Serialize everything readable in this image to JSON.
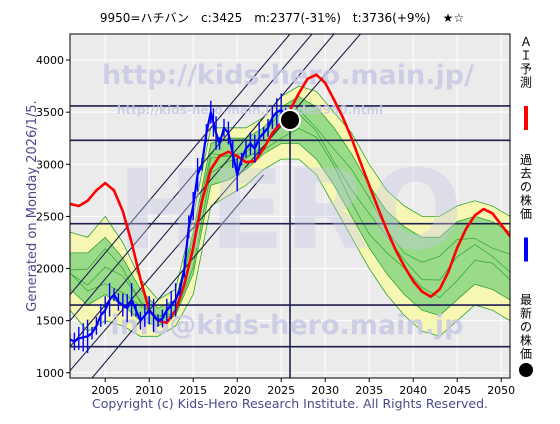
{
  "header": {
    "title": "9950=ハチバン　c:3425　m:2377(-31%)　t:3736(+9%)　★☆"
  },
  "side_label": "Generated on Monday 2026/1/5.",
  "legend": {
    "items": [
      {
        "label": "ＡＩ予測",
        "color": "#ff0000",
        "kind": "line"
      },
      {
        "label": "過去の株価",
        "color": "#0000ff",
        "kind": "line"
      },
      {
        "label": "最新の株価",
        "color": "#000000",
        "kind": "dot"
      }
    ]
  },
  "watermarks": {
    "url_main": "http://kids-hero.main.jp/",
    "url_sub": "http://kids-hero.main.jp/code9950.html",
    "email": "info@kids-hero.main.jp",
    "brand": "HERO"
  },
  "footer": {
    "copyright": "Copyright (c) Kids-Hero Research Institute. All Rights Reserved."
  },
  "colors": {
    "plot_bg": "#ebebeb",
    "grid": "#ffffff",
    "price": "#0000ff",
    "forecast": "#ff0000",
    "trend": "#1f1f50",
    "band_yellow": "#f7f7b4",
    "band_green": "#7ad27a",
    "band_line": "#2fa52f",
    "watermark": "#c8c8e6"
  },
  "chart_data": {
    "type": "line",
    "title": "9950=ハチバン　c:3425　m:2377(-31%)　t:3736(+9%)　★☆",
    "xlim": [
      2001,
      2051
    ],
    "ylim": [
      950,
      4250
    ],
    "x_ticks": [
      2005,
      2010,
      2015,
      2020,
      2025,
      2030,
      2035,
      2040,
      2045,
      2050
    ],
    "y_ticks": [
      1000,
      1500,
      2000,
      2500,
      3000,
      3500,
      4000
    ],
    "grid": true,
    "current_price": {
      "x": 2026.0,
      "y": 3425
    },
    "horizontal_levels": [
      3560,
      3230,
      2430,
      1650,
      1250
    ],
    "vertical_marker_x": 2026.0,
    "trend_lines": [
      {
        "x": [
          2001,
          2034
        ],
        "y": [
          1020,
          4250
        ]
      },
      {
        "x": [
          2001,
          2031
        ],
        "y": [
          1250,
          4250
        ]
      },
      {
        "x": [
          2001,
          2028.5
        ],
        "y": [
          1500,
          4250
        ]
      },
      {
        "x": [
          2001,
          2026
        ],
        "y": [
          1750,
          4250
        ]
      },
      {
        "x": [
          2001,
          2023
        ],
        "y": [
          700,
          2900
        ]
      }
    ],
    "series": [
      {
        "name": "過去の株価",
        "x": [
          2001.0,
          2001.5,
          2002.0,
          2002.5,
          2003.0,
          2003.5,
          2004.0,
          2004.5,
          2005.0,
          2005.5,
          2006.0,
          2006.5,
          2007.0,
          2007.5,
          2008.0,
          2008.5,
          2009.0,
          2009.5,
          2010.0,
          2010.5,
          2011.0,
          2011.5,
          2012.0,
          2012.5,
          2013.0,
          2013.5,
          2014.0,
          2014.5,
          2015.0,
          2015.5,
          2016.0,
          2016.5,
          2017.0,
          2017.3,
          2017.6,
          2018.0,
          2018.5,
          2019.0,
          2019.5,
          2020.0,
          2020.5,
          2021.0,
          2021.5,
          2022.0,
          2022.5,
          2023.0,
          2023.5,
          2024.0,
          2024.5,
          2025.0,
          2025.5,
          2026.0
        ],
        "y": [
          1320,
          1300,
          1330,
          1340,
          1350,
          1380,
          1450,
          1550,
          1600,
          1700,
          1750,
          1680,
          1650,
          1620,
          1700,
          1600,
          1500,
          1550,
          1600,
          1550,
          1500,
          1520,
          1600,
          1650,
          1700,
          1800,
          2000,
          2400,
          2600,
          2900,
          3000,
          3300,
          3500,
          3400,
          3300,
          3200,
          3350,
          3300,
          3100,
          2900,
          3050,
          3150,
          3200,
          3150,
          3250,
          3300,
          3350,
          3450,
          3500,
          3520,
          3480,
          3425
        ]
      },
      {
        "name": "ＡＩ予測",
        "x": [
          2001,
          2002,
          2003,
          2004,
          2005,
          2006,
          2007,
          2008,
          2009,
          2010,
          2011,
          2012,
          2013,
          2014,
          2015,
          2016,
          2017,
          2018,
          2019,
          2020,
          2021,
          2022,
          2023,
          2024,
          2025,
          2026,
          2027,
          2028,
          2029,
          2030,
          2031,
          2032,
          2033,
          2034,
          2035,
          2036,
          2037,
          2038,
          2039,
          2040,
          2041,
          2042,
          2043,
          2044,
          2045,
          2046,
          2047,
          2048,
          2049,
          2050,
          2051
        ],
        "y": [
          2620,
          2600,
          2650,
          2750,
          2820,
          2750,
          2550,
          2250,
          1900,
          1600,
          1500,
          1480,
          1600,
          1850,
          2200,
          2650,
          2950,
          3080,
          3120,
          3080,
          3020,
          3030,
          3150,
          3300,
          3400,
          3520,
          3680,
          3820,
          3860,
          3780,
          3620,
          3450,
          3250,
          3020,
          2800,
          2580,
          2370,
          2180,
          2020,
          1880,
          1780,
          1730,
          1800,
          1970,
          2200,
          2380,
          2510,
          2570,
          2530,
          2420,
          2310
        ]
      }
    ],
    "bands": [
      {
        "x": [
          2001,
          2003,
          2005,
          2007,
          2009,
          2011,
          2013,
          2015,
          2017,
          2019,
          2021,
          2023,
          2025,
          2027,
          2029,
          2031,
          2033,
          2035,
          2037,
          2039,
          2041,
          2043,
          2045,
          2047,
          2049,
          2051
        ],
        "upper": [
          2350,
          2300,
          2500,
          2250,
          1900,
          1700,
          1800,
          2500,
          3350,
          3350,
          3350,
          3450,
          3650,
          3750,
          3700,
          3500,
          3300,
          3000,
          2750,
          2600,
          2500,
          2500,
          2600,
          2650,
          2600,
          2500
        ],
        "lower": [
          1600,
          1400,
          1500,
          1450,
          1350,
          1350,
          1450,
          1750,
          2600,
          2700,
          2800,
          2950,
          3050,
          3050,
          2900,
          2600,
          2300,
          2000,
          1750,
          1550,
          1400,
          1350,
          1500,
          1650,
          1600,
          1500
        ]
      },
      {
        "x": [
          2001,
          2003,
          2005,
          2007,
          2009,
          2011,
          2013,
          2015,
          2017,
          2019,
          2021,
          2023,
          2025,
          2027,
          2029,
          2031,
          2033,
          2035,
          2037,
          2039,
          2041,
          2043,
          2045,
          2047,
          2049,
          2051
        ],
        "upper": [
          2150,
          2150,
          2300,
          2100,
          1800,
          1620,
          1700,
          2350,
          3200,
          3250,
          3250,
          3350,
          3550,
          3650,
          3550,
          3350,
          3100,
          2800,
          2550,
          2400,
          2300,
          2300,
          2450,
          2500,
          2450,
          2350
        ],
        "lower": [
          1800,
          1650,
          1750,
          1650,
          1500,
          1450,
          1550,
          1950,
          2800,
          2850,
          2950,
          3100,
          3200,
          3200,
          3050,
          2800,
          2500,
          2200,
          1950,
          1750,
          1600,
          1550,
          1700,
          1850,
          1800,
          1700
        ]
      }
    ]
  }
}
